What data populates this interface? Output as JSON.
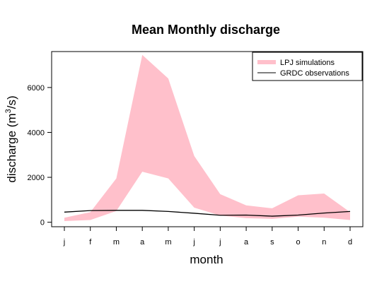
{
  "chart_data": {
    "type": "area",
    "title": "Mean Monthly discharge",
    "xlabel": "month",
    "ylabel": "discharge (m",
    "ylabel_sup": "3",
    "ylabel_tail": "/s)",
    "categories": [
      "j",
      "f",
      "m",
      "a",
      "m",
      "j",
      "j",
      "a",
      "s",
      "o",
      "n",
      "d"
    ],
    "ylim": [
      -200,
      7600
    ],
    "yticks": [
      0,
      2000,
      4000,
      6000
    ],
    "ytick_labels": [
      "0",
      "2000",
      "4000",
      "6000"
    ],
    "grid": false,
    "legend_position": "top-right",
    "series": [
      {
        "name": "LPJ simulations",
        "kind": "band",
        "color": "#FFC0CB",
        "lower": [
          50,
          100,
          500,
          2250,
          1950,
          650,
          300,
          180,
          150,
          250,
          200,
          100
        ],
        "upper": [
          200,
          450,
          1950,
          7450,
          6400,
          2950,
          1250,
          750,
          620,
          1200,
          1280,
          450
        ]
      },
      {
        "name": "GRDC observations",
        "kind": "line",
        "color": "#000000",
        "values": [
          450,
          520,
          530,
          530,
          480,
          400,
          310,
          320,
          270,
          320,
          410,
          480
        ]
      }
    ]
  }
}
